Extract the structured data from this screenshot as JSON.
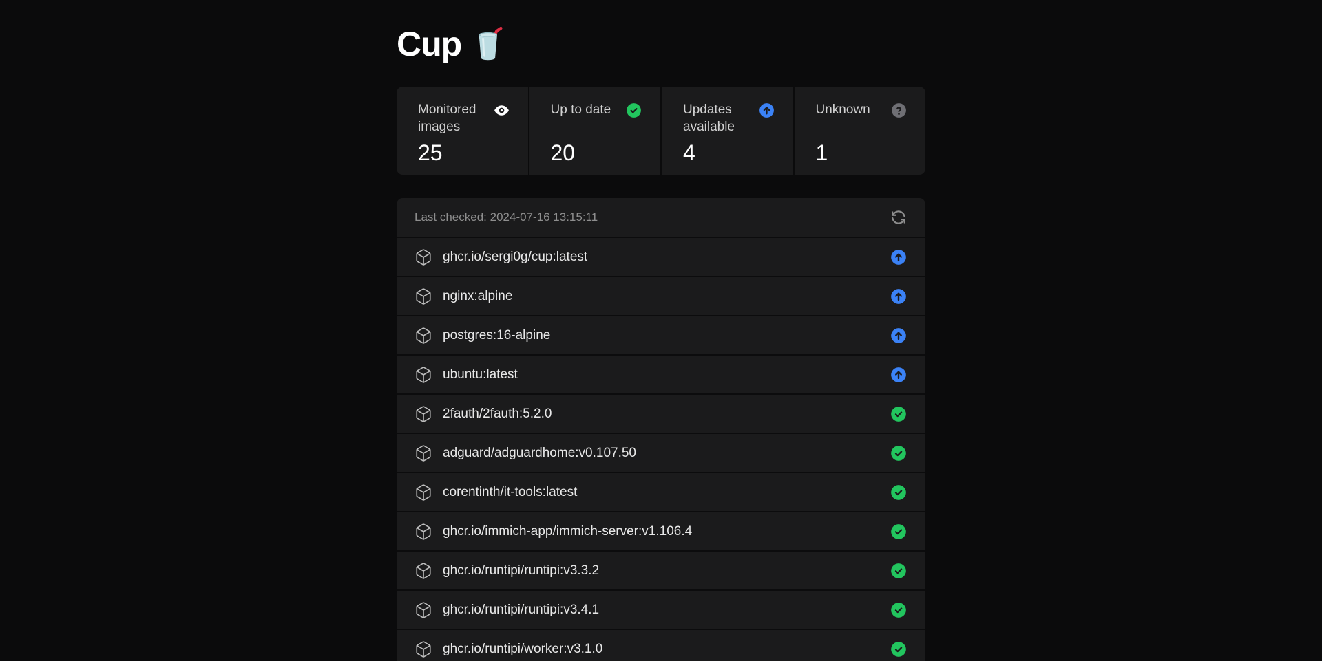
{
  "page": {
    "title": "Cup",
    "title_icon": "cup-with-straw"
  },
  "stats": {
    "cards": [
      {
        "label": "Monitored images",
        "value": "25",
        "icon": "eye-icon",
        "color": "#ffffff"
      },
      {
        "label": "Up to date",
        "value": "20",
        "icon": "circle-check-icon",
        "color": "#22c55e"
      },
      {
        "label": "Updates available",
        "value": "4",
        "icon": "circle-arrow-up-icon",
        "color": "#3b82f6"
      },
      {
        "label": "Unknown",
        "value": "1",
        "icon": "circle-question-icon",
        "color": "#6f6f74"
      }
    ]
  },
  "list": {
    "last_checked": "Last checked: 2024-07-16 13:15:11",
    "refresh_icon": "refresh-icon",
    "items": [
      {
        "name": "ghcr.io/sergi0g/cup:latest",
        "status": "update-available",
        "icon": "box-icon"
      },
      {
        "name": "nginx:alpine",
        "status": "update-available",
        "icon": "box-icon"
      },
      {
        "name": "postgres:16-alpine",
        "status": "update-available",
        "icon": "box-icon"
      },
      {
        "name": "ubuntu:latest",
        "status": "update-available",
        "icon": "box-icon"
      },
      {
        "name": "2fauth/2fauth:5.2.0",
        "status": "up-to-date",
        "icon": "box-icon"
      },
      {
        "name": "adguard/adguardhome:v0.107.50",
        "status": "up-to-date",
        "icon": "box-icon"
      },
      {
        "name": "corentinth/it-tools:latest",
        "status": "up-to-date",
        "icon": "box-icon"
      },
      {
        "name": "ghcr.io/immich-app/immich-server:v1.106.4",
        "status": "up-to-date",
        "icon": "box-icon"
      },
      {
        "name": "ghcr.io/runtipi/runtipi:v3.3.2",
        "status": "up-to-date",
        "icon": "box-icon"
      },
      {
        "name": "ghcr.io/runtipi/runtipi:v3.4.1",
        "status": "up-to-date",
        "icon": "box-icon"
      },
      {
        "name": "ghcr.io/runtipi/worker:v3.1.0",
        "status": "up-to-date",
        "icon": "box-icon"
      }
    ]
  },
  "colors": {
    "background": "#0b0b0c",
    "surface": "#1b1b1c",
    "update_available": "#3b82f6",
    "up_to_date": "#22c55e",
    "unknown": "#6f6f74",
    "text_primary": "#ffffff",
    "text_muted": "#8e8e8e"
  }
}
